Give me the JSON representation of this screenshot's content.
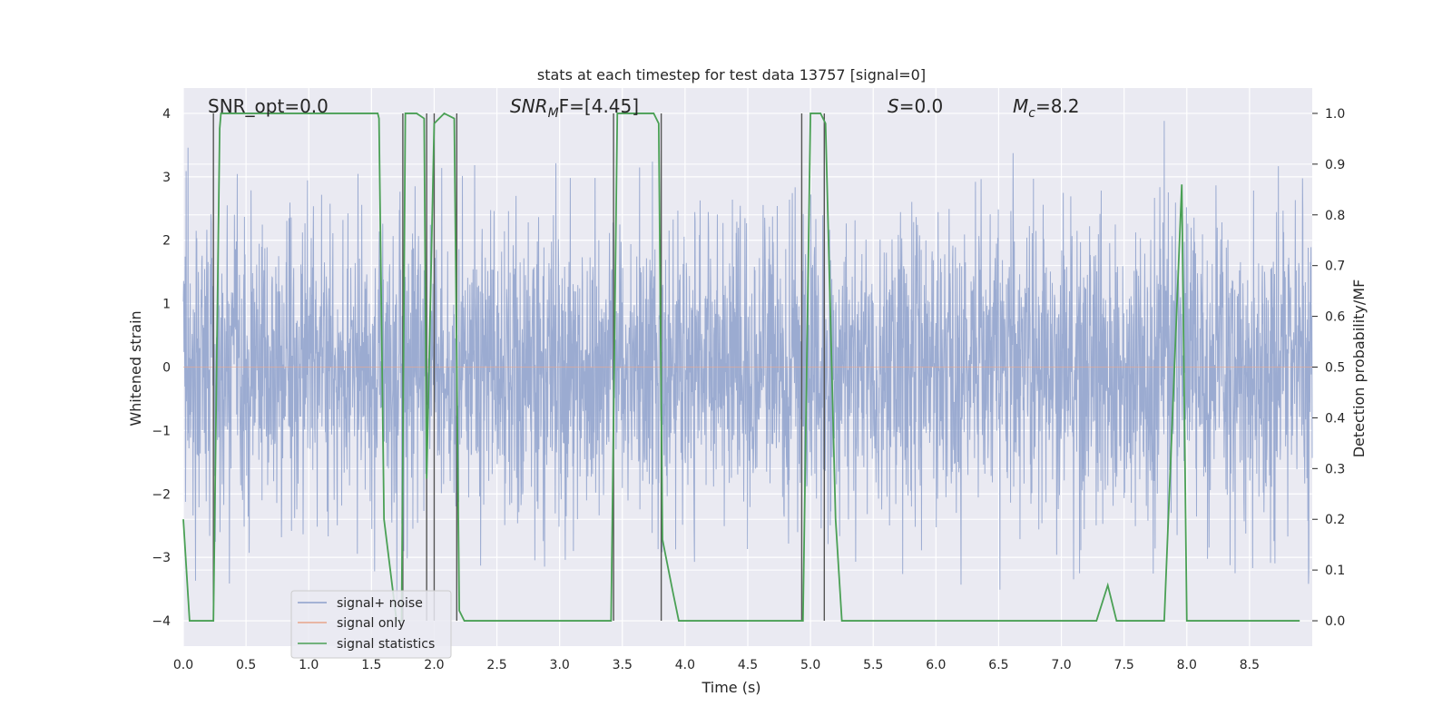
{
  "chart_data": {
    "type": "line",
    "title": "stats at each timestep for test data 13757 [signal=0]",
    "xlabel": "Time (s)",
    "ylabel_left": "Whitened strain",
    "ylabel_right": "Detection probability/MF",
    "xlim": [
      0,
      9
    ],
    "ylim_left": [
      -4.4,
      4.4
    ],
    "ylim_right": [
      -0.05,
      1.05
    ],
    "x_ticks": [
      0.0,
      0.5,
      1.0,
      1.5,
      2.0,
      2.5,
      3.0,
      3.5,
      4.0,
      4.5,
      5.0,
      5.5,
      6.0,
      6.5,
      7.0,
      7.5,
      8.0,
      8.5
    ],
    "x_tick_labels": [
      "0.0",
      "0.5",
      "1.0",
      "1.5",
      "2.0",
      "2.5",
      "3.0",
      "3.5",
      "4.0",
      "4.5",
      "5.0",
      "5.5",
      "6.0",
      "6.5",
      "7.0",
      "7.5",
      "8.0",
      "8.5"
    ],
    "y_left_ticks": [
      -4,
      -3,
      -2,
      -1,
      0,
      1,
      2,
      3,
      4
    ],
    "y_left_tick_labels": [
      "−4",
      "−3",
      "−2",
      "−1",
      "0",
      "1",
      "2",
      "3",
      "4"
    ],
    "y_right_ticks": [
      0.0,
      0.1,
      0.2,
      0.3,
      0.4,
      0.5,
      0.6,
      0.7,
      0.8,
      0.9,
      1.0
    ],
    "y_right_tick_labels": [
      "0.0",
      "0.1",
      "0.2",
      "0.3",
      "0.4",
      "0.5",
      "0.6",
      "0.7",
      "0.8",
      "0.9",
      "1.0"
    ],
    "annotations": {
      "snr_opt": "SNR_opt=0.0",
      "snr_mf_main": "SNR",
      "snr_mf_sub": "M",
      "snr_mf_rest": "F=[4.45]",
      "s_italic": "S",
      "s_rest": "=0.0",
      "mc_main": "M",
      "mc_sub": "c",
      "mc_rest": "=8.2"
    },
    "legend": [
      "signal+ noise",
      "signal only",
      "signal statistics"
    ],
    "series": [
      {
        "name": "signal+ noise",
        "color": "#8da0cb",
        "kind": "noise",
        "std": 1.15,
        "sample_rate_hz": 2048
      },
      {
        "name": "signal only",
        "color": "#e8a48a",
        "kind": "flat",
        "value": 0
      },
      {
        "name": "signal statistics",
        "color": "#4aa055",
        "axis": "right",
        "x": [
          0.0,
          0.05,
          0.08,
          0.15,
          0.24,
          0.29,
          0.3,
          0.32,
          0.4,
          1.55,
          1.56,
          1.6,
          1.7,
          1.74,
          1.77,
          1.82,
          1.86,
          1.92,
          1.94,
          2.0,
          2.04,
          2.08,
          2.16,
          2.2,
          2.24,
          2.3,
          2.35,
          3.41,
          3.46,
          3.5,
          3.75,
          3.79,
          3.82,
          3.9,
          3.95,
          4.0,
          4.93,
          4.94,
          5.0,
          5.08,
          5.12,
          5.2,
          5.25,
          7.28,
          7.37,
          7.44,
          7.82,
          7.96,
          8.0,
          8.05,
          8.9
        ],
        "y": [
          0.2,
          0.0,
          0.0,
          0.0,
          0.0,
          0.97,
          1.0,
          1.0,
          1.0,
          1.0,
          0.99,
          0.2,
          0.0,
          0.0,
          1.0,
          1.0,
          1.0,
          0.99,
          0.28,
          0.98,
          0.99,
          1.0,
          0.99,
          0.02,
          0.0,
          0.0,
          0.0,
          0.0,
          1.0,
          1.0,
          1.0,
          0.98,
          0.16,
          0.06,
          0.0,
          0.0,
          0.0,
          0.0,
          1.0,
          1.0,
          0.98,
          0.2,
          0.0,
          0.0,
          0.07,
          0.0,
          0.0,
          0.86,
          0.0,
          0.0,
          0.0
        ]
      }
    ],
    "vertical_lines_x": [
      0.24,
      1.75,
      1.94,
      2.0,
      2.18,
      3.43,
      3.81,
      4.93,
      5.11
    ],
    "vertical_line_color": "#555555"
  }
}
